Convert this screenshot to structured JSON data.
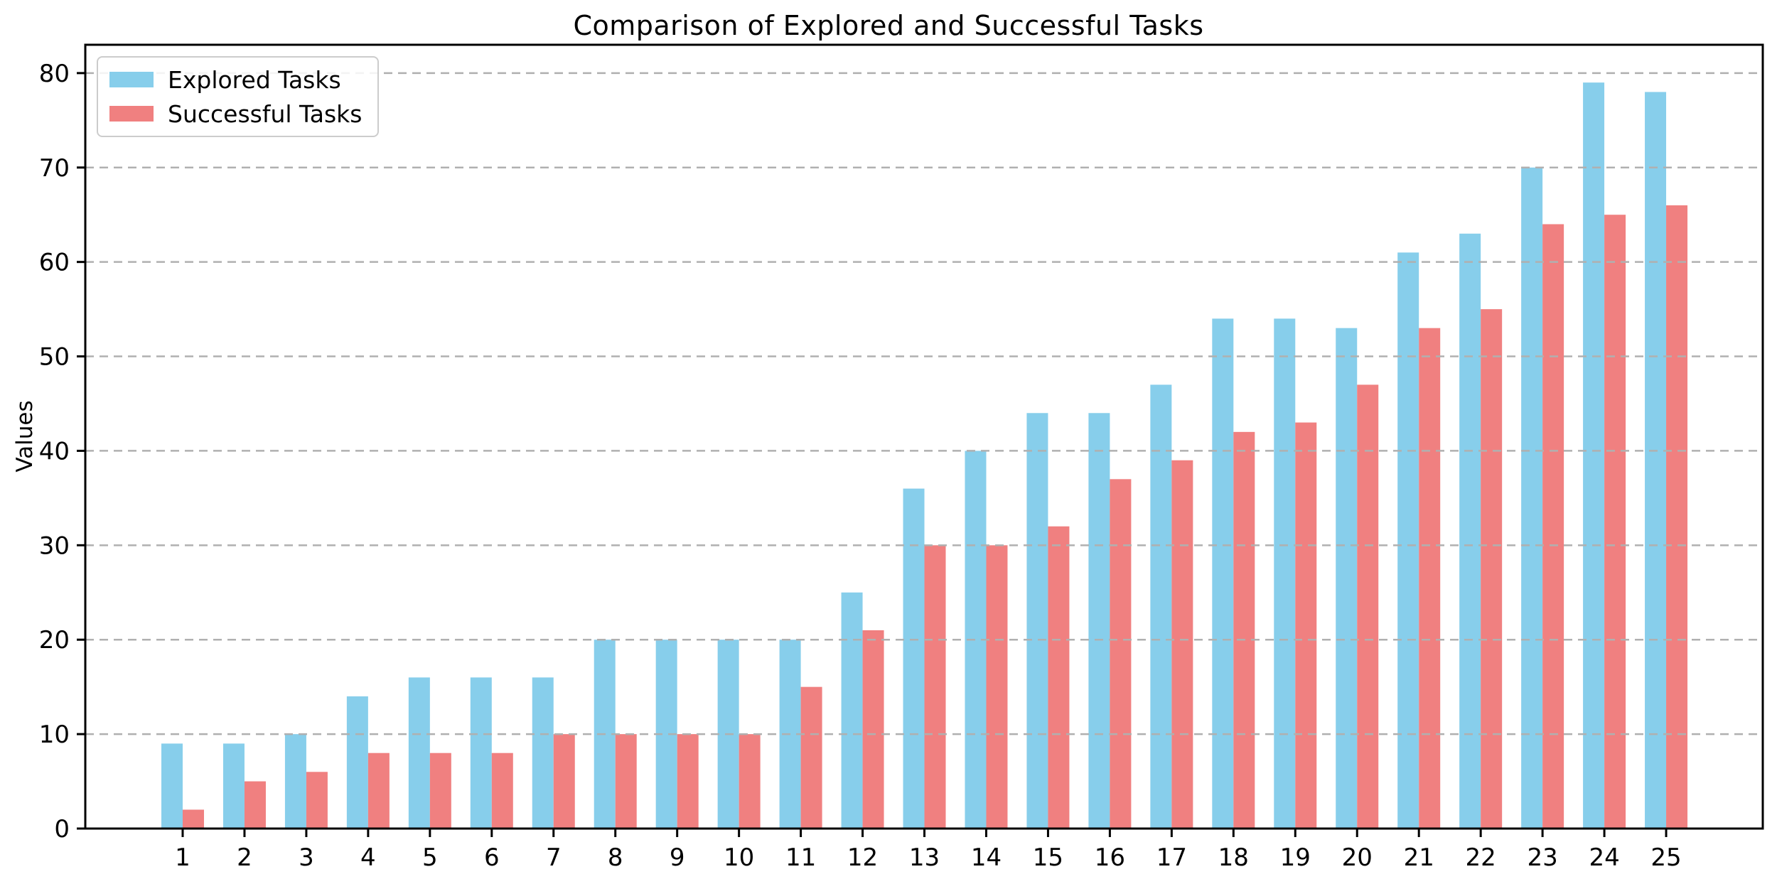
{
  "chart_data": {
    "type": "bar",
    "title": "Comparison of Explored and Successful Tasks",
    "xlabel": "",
    "ylabel": "Values",
    "categories": [
      "1",
      "2",
      "3",
      "4",
      "5",
      "6",
      "7",
      "8",
      "9",
      "10",
      "11",
      "12",
      "13",
      "14",
      "15",
      "16",
      "17",
      "18",
      "19",
      "20",
      "21",
      "22",
      "23",
      "24",
      "25"
    ],
    "series": [
      {
        "name": "Explored Tasks",
        "color": "#87CEEB",
        "values": [
          9,
          9,
          10,
          14,
          16,
          16,
          16,
          20,
          20,
          20,
          20,
          25,
          36,
          40,
          44,
          44,
          47,
          54,
          54,
          53,
          61,
          63,
          70,
          79,
          78
        ]
      },
      {
        "name": "Successful Tasks",
        "color": "#F08080",
        "values": [
          2,
          5,
          6,
          8,
          8,
          8,
          10,
          10,
          10,
          10,
          15,
          21,
          30,
          30,
          32,
          37,
          39,
          42,
          43,
          47,
          53,
          55,
          64,
          65,
          66
        ]
      }
    ],
    "yticks": [
      0,
      10,
      20,
      30,
      40,
      50,
      60,
      70,
      80
    ],
    "ylim": [
      0,
      83
    ],
    "grid": "horizontal-dashed",
    "grid_color": "#b0b0b0",
    "grid_on_top_of_bars": true,
    "frame": "full-box",
    "axis_color": "#000000",
    "legend_position": "upper-left",
    "background_color": "#ffffff"
  }
}
